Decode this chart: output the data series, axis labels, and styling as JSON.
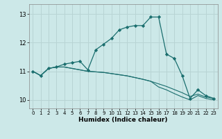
{
  "xlabel": "Humidex (Indice chaleur)",
  "bg_color": "#cce8e8",
  "line_color": "#1a6e6e",
  "grid_color": "#b8d4d4",
  "xlim": [
    -0.5,
    23.5
  ],
  "ylim": [
    9.7,
    13.35
  ],
  "yticks": [
    10,
    11,
    12,
    13
  ],
  "xticks": [
    0,
    1,
    2,
    3,
    4,
    5,
    6,
    7,
    8,
    9,
    10,
    11,
    12,
    13,
    14,
    15,
    16,
    17,
    18,
    19,
    20,
    21,
    22,
    23
  ],
  "series": [
    {
      "x": [
        0,
        1,
        2,
        3,
        4,
        5,
        6,
        7,
        8,
        9,
        10,
        11,
        12,
        13,
        14,
        15,
        16,
        17,
        18,
        19,
        20,
        21,
        22,
        23
      ],
      "y": [
        11.0,
        10.85,
        11.1,
        11.15,
        11.25,
        11.3,
        11.35,
        11.05,
        11.75,
        11.95,
        12.15,
        12.45,
        12.55,
        12.6,
        12.6,
        12.9,
        12.9,
        11.6,
        11.45,
        10.85,
        10.05,
        10.35,
        10.15,
        10.05
      ],
      "marker": true
    },
    {
      "x": [
        0,
        1,
        2,
        3,
        4,
        5,
        6,
        7,
        8,
        9,
        10,
        11,
        12,
        13,
        14,
        15,
        16,
        17,
        18,
        19,
        20,
        21,
        22,
        23
      ],
      "y": [
        11.0,
        10.85,
        11.1,
        11.15,
        11.15,
        11.1,
        11.05,
        11.0,
        10.98,
        10.96,
        10.92,
        10.88,
        10.84,
        10.78,
        10.72,
        10.65,
        10.56,
        10.47,
        10.36,
        10.25,
        10.12,
        10.2,
        10.1,
        10.05
      ],
      "marker": false
    },
    {
      "x": [
        0,
        1,
        2,
        3,
        4,
        5,
        6,
        7,
        8,
        9,
        10,
        11,
        12,
        13,
        14,
        15,
        16,
        17,
        18,
        19,
        20,
        21,
        22,
        23
      ],
      "y": [
        11.0,
        10.85,
        11.1,
        11.15,
        11.15,
        11.1,
        11.05,
        11.0,
        10.98,
        10.96,
        10.92,
        10.88,
        10.84,
        10.78,
        10.72,
        10.65,
        10.45,
        10.35,
        10.22,
        10.1,
        10.0,
        10.15,
        10.05,
        10.0
      ],
      "marker": false
    }
  ]
}
